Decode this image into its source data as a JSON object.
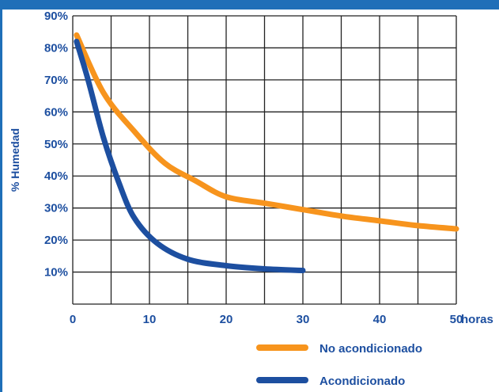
{
  "chart_data": {
    "type": "line",
    "xlabel": "horas",
    "ylabel": "% Humedad",
    "xlim": [
      0,
      50
    ],
    "ylim": [
      0,
      90
    ],
    "x_ticks": [
      0,
      10,
      20,
      30,
      40,
      50
    ],
    "x_tick_labels": [
      "0",
      "10",
      "20",
      "30",
      "40",
      "50"
    ],
    "y_ticks": [
      10,
      20,
      30,
      40,
      50,
      60,
      70,
      80,
      90
    ],
    "y_tick_labels": [
      "10%",
      "20%",
      "30%",
      "40%",
      "50%",
      "60%",
      "70%",
      "80%",
      "90%"
    ],
    "grid": true,
    "legend_position": "bottom-right",
    "series": [
      {
        "name": "No acondicionado",
        "color": "#f7941d",
        "x": [
          0.5,
          4,
          8,
          12,
          16,
          20,
          25,
          30,
          35,
          40,
          45,
          50
        ],
        "y": [
          84,
          66,
          54,
          44,
          38.5,
          33.5,
          31.5,
          29.5,
          27.5,
          26,
          24.5,
          23.5
        ]
      },
      {
        "name": "Acondicionado",
        "color": "#1d4fa0",
        "x": [
          0.5,
          2,
          4,
          6,
          8,
          11,
          15,
          20,
          25,
          30
        ],
        "y": [
          82,
          70,
          52,
          38,
          27,
          19,
          14,
          12,
          11,
          10.5
        ]
      }
    ]
  }
}
